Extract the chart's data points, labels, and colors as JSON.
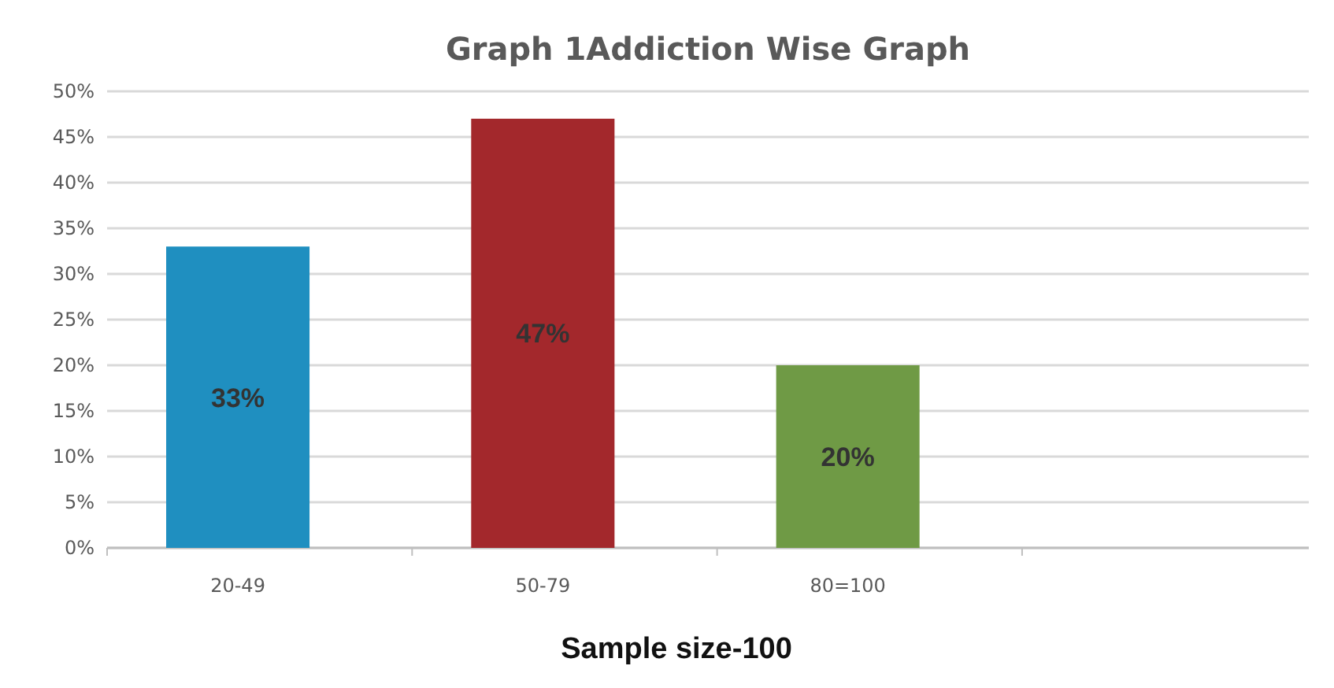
{
  "chart_data": {
    "type": "bar",
    "title": "Graph 1Addiction Wise Graph",
    "xlabel": "Sample size-100",
    "categories": [
      "20-49",
      "50-79",
      "80=100",
      null
    ],
    "values": [
      33,
      47,
      20,
      null
    ],
    "colors": [
      "#1f8fc0",
      "#a3282c",
      "#6f9a45",
      null
    ],
    "value_labels": [
      "33%",
      "47%",
      "20%",
      null
    ],
    "ylim": [
      0,
      50
    ],
    "yticks": [
      {
        "value": 0,
        "label": "0%"
      },
      {
        "value": 5,
        "label": "5%"
      },
      {
        "value": 10,
        "label": "10%"
      },
      {
        "value": 15,
        "label": "15%"
      },
      {
        "value": 20,
        "label": "20%"
      },
      {
        "value": 25,
        "label": "25%"
      },
      {
        "value": 30,
        "label": "30%"
      },
      {
        "value": 35,
        "label": "35%"
      },
      {
        "value": 40,
        "label": "40%"
      },
      {
        "value": 45,
        "label": "45%"
      },
      {
        "value": 50,
        "label": "50%"
      }
    ],
    "grid": "y"
  }
}
